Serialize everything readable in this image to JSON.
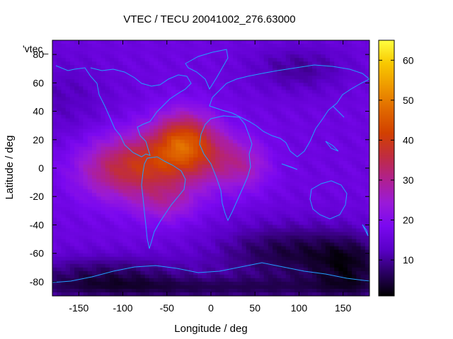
{
  "chart_data": {
    "type": "heatmap",
    "title": "VTEC / TECU 20041002_276.63000",
    "xlabel": "Longitude / deg",
    "ylabel": "Latitude / deg",
    "series_key": "'vtec_",
    "xlim": [
      -180,
      180
    ],
    "ylim": [
      -90,
      90
    ],
    "xticks": [
      -150,
      -100,
      -50,
      0,
      50,
      100,
      150
    ],
    "yticks": [
      -80,
      -60,
      -40,
      -20,
      0,
      20,
      40,
      60,
      80
    ],
    "colorbar": {
      "min": 1,
      "max": 65,
      "ticks": [
        10,
        20,
        30,
        40,
        50,
        60
      ]
    },
    "palette": [
      "#000000",
      "#2a0063",
      "#5a00c8",
      "#7a08f0",
      "#9a1ad8",
      "#b02090",
      "#c02c40",
      "#d24000",
      "#e06800",
      "#ee9800",
      "#f8c800",
      "#ffff40"
    ],
    "coastline_color": "#22a0ff",
    "background_level": 16,
    "peaks": [
      {
        "lon": -30,
        "lat": 20,
        "amp": 22,
        "slon": 24,
        "slat": 14
      },
      {
        "lon": -70,
        "lat": 2,
        "amp": 20,
        "slon": 38,
        "slat": 16
      },
      {
        "lon": -120,
        "lat": -2,
        "amp": 8,
        "slon": 30,
        "slat": 15
      },
      {
        "lon": 10,
        "lat": 6,
        "amp": 10,
        "slon": 30,
        "slat": 14
      },
      {
        "lon": 40,
        "lat": 0,
        "amp": 6,
        "slon": 20,
        "slat": 12
      },
      {
        "lon": -50,
        "lat": -25,
        "amp": 8,
        "slon": 25,
        "slat": 10
      },
      {
        "lon": 100,
        "lat": 70,
        "amp": -6,
        "slon": 40,
        "slat": 12
      },
      {
        "lon": 90,
        "lat": -60,
        "amp": -11,
        "slon": 60,
        "slat": 15
      },
      {
        "lon": 160,
        "lat": -70,
        "amp": -9,
        "slon": 30,
        "slat": 15
      },
      {
        "lon": -120,
        "lat": -75,
        "amp": -9,
        "slon": 70,
        "slat": 10
      },
      {
        "lon": 0,
        "lat": -85,
        "amp": -8,
        "slon": 180,
        "slat": 6
      },
      {
        "lon": -170,
        "lat": 50,
        "amp": -4,
        "slon": 40,
        "slat": 20
      }
    ]
  }
}
